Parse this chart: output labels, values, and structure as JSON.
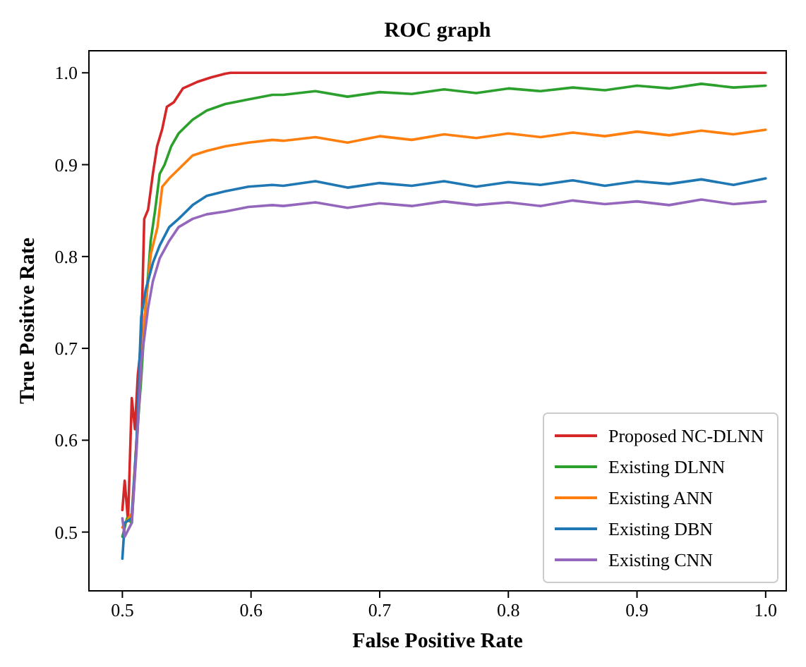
{
  "chart_data": {
    "type": "line",
    "title": "ROC graph",
    "xlabel": "False Positive Rate",
    "ylabel": "True Positive Rate",
    "xlim": [
      0.474,
      1.016
    ],
    "ylim": [
      0.436,
      1.024
    ],
    "xticks": [
      {
        "value": 0.5,
        "label": "0.5"
      },
      {
        "value": 0.6,
        "label": "0.6"
      },
      {
        "value": 0.7,
        "label": "0.7"
      },
      {
        "value": 0.8,
        "label": "0.8"
      },
      {
        "value": 0.9,
        "label": "0.9"
      },
      {
        "value": 1.0,
        "label": "1.0"
      }
    ],
    "yticks": [
      {
        "value": 0.5,
        "label": "0.5"
      },
      {
        "value": 0.6,
        "label": "0.6"
      },
      {
        "value": 0.7,
        "label": "0.7"
      },
      {
        "value": 0.8,
        "label": "0.8"
      },
      {
        "value": 0.9,
        "label": "0.9"
      },
      {
        "value": 1.0,
        "label": "1.0"
      }
    ],
    "grid": false,
    "legend": "bottom right",
    "marker": "none",
    "line_style": "solid",
    "series": [
      {
        "name": "Proposed NC-DLNN",
        "color": "#d62728",
        "x": [
          0.5,
          0.5018,
          0.5044,
          0.5073,
          0.5098,
          0.512,
          0.5146,
          0.517,
          0.52,
          0.5237,
          0.527,
          0.531,
          0.5346,
          0.54,
          0.547,
          0.558,
          0.569,
          0.58,
          0.584,
          0.7,
          0.85,
          1.0
        ],
        "values": [
          0.524,
          0.556,
          0.512,
          0.646,
          0.612,
          0.671,
          0.705,
          0.841,
          0.851,
          0.89,
          0.92,
          0.939,
          0.963,
          0.968,
          0.983,
          0.99,
          0.995,
          0.999,
          1.0,
          1.0,
          1.0,
          1.0
        ]
      },
      {
        "name": "Existing DLNN",
        "color": "#2ca02c",
        "x": [
          0.5,
          0.5036,
          0.5073,
          0.511,
          0.5146,
          0.518,
          0.522,
          0.5255,
          0.529,
          0.5328,
          0.538,
          0.5437,
          0.5546,
          0.5656,
          0.58,
          0.598,
          0.6166,
          0.625,
          0.65,
          0.675,
          0.7,
          0.725,
          0.75,
          0.775,
          0.8,
          0.825,
          0.85,
          0.875,
          0.9,
          0.925,
          0.95,
          0.975,
          1.0
        ],
        "values": [
          0.495,
          0.515,
          0.51,
          0.598,
          0.666,
          0.744,
          0.817,
          0.851,
          0.89,
          0.9,
          0.92,
          0.934,
          0.949,
          0.959,
          0.966,
          0.971,
          0.976,
          0.976,
          0.98,
          0.974,
          0.979,
          0.977,
          0.982,
          0.978,
          0.983,
          0.98,
          0.984,
          0.981,
          0.986,
          0.983,
          0.988,
          0.984,
          0.986
        ]
      },
      {
        "name": "Existing ANN",
        "color": "#ff7f0e",
        "x": [
          0.5,
          0.5073,
          0.511,
          0.5146,
          0.518,
          0.522,
          0.5273,
          0.531,
          0.5364,
          0.5437,
          0.5546,
          0.5656,
          0.58,
          0.598,
          0.6166,
          0.625,
          0.65,
          0.675,
          0.7,
          0.725,
          0.75,
          0.775,
          0.8,
          0.825,
          0.85,
          0.875,
          0.9,
          0.925,
          0.95,
          0.975,
          1.0
        ],
        "values": [
          0.505,
          0.52,
          0.598,
          0.685,
          0.744,
          0.802,
          0.832,
          0.876,
          0.885,
          0.895,
          0.91,
          0.915,
          0.92,
          0.924,
          0.927,
          0.926,
          0.93,
          0.924,
          0.931,
          0.927,
          0.933,
          0.929,
          0.934,
          0.93,
          0.935,
          0.931,
          0.936,
          0.932,
          0.937,
          0.933,
          0.938
        ]
      },
      {
        "name": "Existing DBN",
        "color": "#1f77b4",
        "x": [
          0.5,
          0.5018,
          0.5073,
          0.511,
          0.5146,
          0.518,
          0.5237,
          0.529,
          0.5364,
          0.5437,
          0.5546,
          0.5656,
          0.58,
          0.598,
          0.6166,
          0.625,
          0.65,
          0.675,
          0.7,
          0.725,
          0.75,
          0.775,
          0.8,
          0.825,
          0.85,
          0.875,
          0.9,
          0.925,
          0.95,
          0.975,
          1.0
        ],
        "values": [
          0.471,
          0.51,
          0.515,
          0.598,
          0.734,
          0.763,
          0.793,
          0.812,
          0.832,
          0.841,
          0.856,
          0.866,
          0.871,
          0.876,
          0.878,
          0.877,
          0.882,
          0.875,
          0.88,
          0.877,
          0.882,
          0.876,
          0.881,
          0.878,
          0.883,
          0.877,
          0.882,
          0.879,
          0.884,
          0.878,
          0.885
        ]
      },
      {
        "name": "Existing CNN",
        "color": "#9467bd",
        "x": [
          0.5,
          0.5018,
          0.5073,
          0.511,
          0.5146,
          0.52,
          0.5237,
          0.529,
          0.5364,
          0.5437,
          0.5546,
          0.5656,
          0.58,
          0.598,
          0.6166,
          0.625,
          0.65,
          0.675,
          0.7,
          0.725,
          0.75,
          0.775,
          0.8,
          0.825,
          0.85,
          0.875,
          0.9,
          0.925,
          0.95,
          0.975,
          1.0
        ],
        "values": [
          0.515,
          0.495,
          0.51,
          0.588,
          0.685,
          0.744,
          0.773,
          0.798,
          0.817,
          0.832,
          0.841,
          0.846,
          0.849,
          0.854,
          0.856,
          0.855,
          0.859,
          0.853,
          0.858,
          0.855,
          0.86,
          0.856,
          0.859,
          0.855,
          0.861,
          0.857,
          0.86,
          0.856,
          0.862,
          0.857,
          0.86
        ]
      }
    ]
  }
}
